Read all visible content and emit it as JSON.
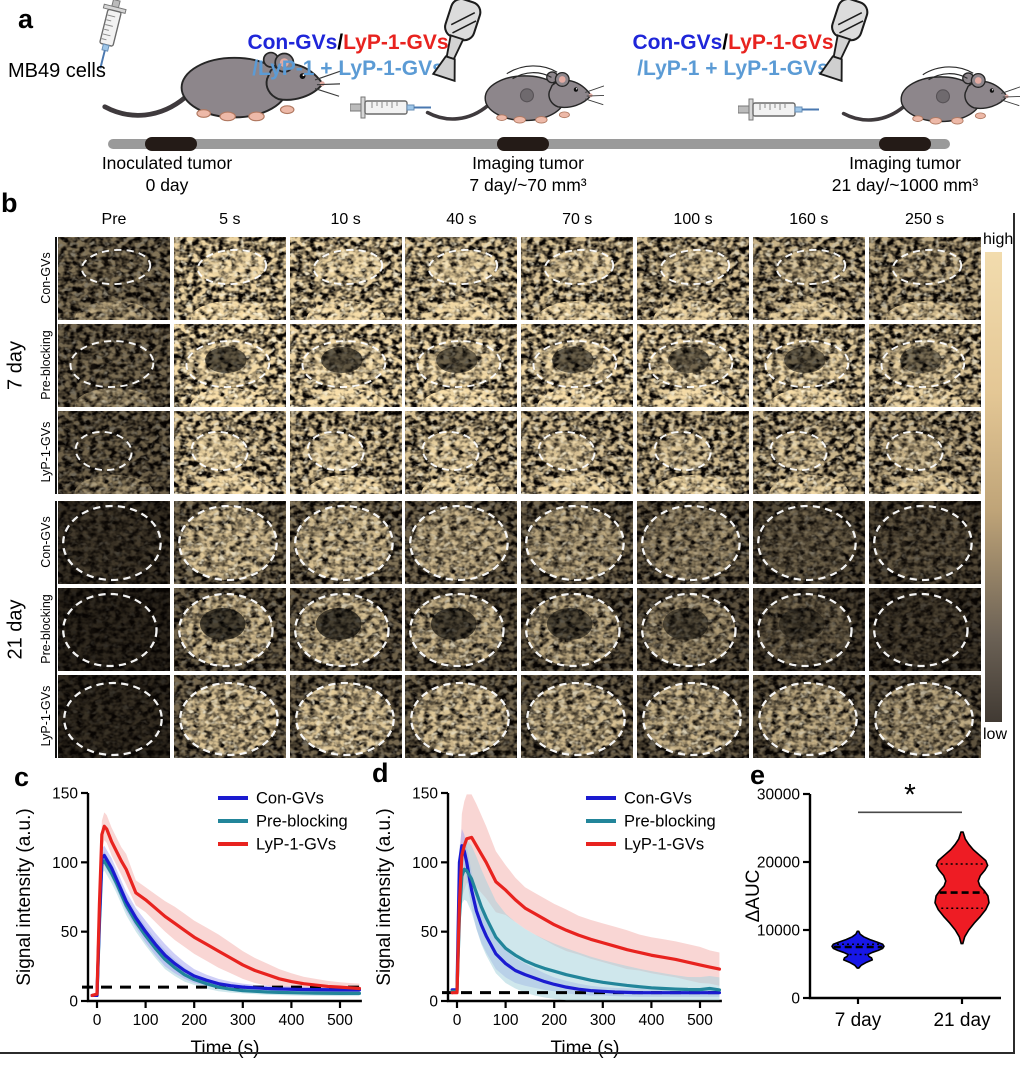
{
  "panels": {
    "a": "a",
    "b": "b",
    "c": "c",
    "d": "d",
    "e": "e"
  },
  "palette": {
    "blue": "#1f26d9",
    "red": "#e8231f",
    "lightblue": "#5b9bd5",
    "black": "#000000",
    "line_blue": "#1b1bd0",
    "line_teal": "#22859a",
    "line_red": "#e8231f",
    "band_blue": "#a8a8f0",
    "band_teal": "#a8d4dc",
    "band_red": "#f4b4b0",
    "violin_blue": "#1717e8",
    "violin_red": "#ee1c24",
    "colorbar_top": "#f2dcae",
    "colorbar_mid": "#bfa478",
    "colorbar_low": "#6b6155",
    "colorbar_bottom": "#413a33"
  },
  "panel_a": {
    "mb49": "MB49 cells",
    "injection_groups": [
      {
        "line1": [
          {
            "t": "Con-GVs",
            "c": "blue"
          },
          {
            "t": "/",
            "c": "black"
          },
          {
            "t": "LyP-1-GVs",
            "c": "red"
          }
        ],
        "line2": [
          {
            "t": "/LyP-1 + LyP-1-GVs",
            "c": "lightblue"
          }
        ]
      },
      {
        "line1": [
          {
            "t": "Con-GVs",
            "c": "blue"
          },
          {
            "t": "/",
            "c": "black"
          },
          {
            "t": "LyP-1-GVs",
            "c": "red"
          }
        ],
        "line2": [
          {
            "t": "/LyP-1 + LyP-1-GVs",
            "c": "lightblue"
          }
        ]
      }
    ],
    "timeline": [
      {
        "title": "Inoculated tumor",
        "subtitle": "0 day"
      },
      {
        "title": "Imaging tumor",
        "subtitle": "7 day/~70 mm³"
      },
      {
        "title": "Imaging tumor",
        "subtitle": "21 day/~1000 mm³"
      }
    ]
  },
  "panel_b": {
    "col_headers": [
      "Pre",
      "5 s",
      "10 s",
      "40 s",
      "70 s",
      "100 s",
      "160 s",
      "250 s"
    ],
    "groups": [
      {
        "label": "7 day",
        "rows": [
          "Con-GVs",
          "Pre-blocking",
          "LyP-1-GVs"
        ]
      },
      {
        "label": "21 day",
        "rows": [
          "Con-GVs",
          "Pre-blocking",
          "LyP-1-GVs"
        ]
      }
    ],
    "colorbar": {
      "top": "high",
      "bottom": "low"
    }
  },
  "chart_data": [
    {
      "id": "c",
      "type": "line",
      "xlabel": "Time (s)",
      "ylabel": "Signal intensity (a.u.)",
      "xticks": [
        0,
        100,
        200,
        300,
        400,
        500
      ],
      "yticks": [
        0,
        50,
        100,
        150
      ],
      "xlim": [
        -20,
        545
      ],
      "ylim": [
        0,
        150
      ],
      "baseline": 10,
      "legend_pos": "top-right",
      "t": [
        -10,
        0,
        5,
        10,
        15,
        20,
        30,
        40,
        50,
        60,
        80,
        100,
        120,
        140,
        160,
        180,
        200,
        225,
        250,
        275,
        300,
        325,
        350,
        375,
        400,
        425,
        450,
        475,
        500,
        520,
        540
      ],
      "series": [
        {
          "name": "Con-GVs",
          "color": "#1b1bd0",
          "band": "#a8a8f0",
          "mean": [
            4,
            4,
            60,
            103,
            105,
            102,
            96,
            88,
            80,
            72,
            60,
            50,
            41,
            33,
            27,
            22,
            18,
            15,
            12.5,
            11,
            10,
            9.5,
            9,
            8.7,
            8.5,
            8.3,
            8.2,
            8.1,
            8,
            8,
            8
          ],
          "err": [
            1,
            1,
            6,
            7,
            7,
            7,
            7,
            7,
            7,
            7,
            7,
            8,
            8,
            8,
            7,
            6,
            5,
            4,
            3.5,
            3,
            2.5,
            2,
            2,
            2,
            2,
            2,
            2,
            2,
            2,
            2,
            2
          ]
        },
        {
          "name": "Pre-blocking",
          "color": "#22859a",
          "band": "#a8d4dc",
          "mean": [
            4,
            4,
            55,
            99,
            101,
            98,
            92,
            85,
            77,
            69,
            57,
            47,
            38,
            30,
            24,
            19,
            15.5,
            12.5,
            10,
            8.5,
            7.5,
            7,
            6.5,
            6.2,
            6,
            5.8,
            5.7,
            5.6,
            5.5,
            5.5,
            5.5
          ],
          "err": [
            1,
            1,
            6,
            7,
            7,
            7,
            7,
            7,
            7,
            7,
            7,
            7,
            7,
            7,
            6,
            5,
            4,
            3.5,
            3,
            2.5,
            2,
            2,
            2,
            2,
            2,
            2,
            2,
            2,
            2,
            2,
            2
          ]
        },
        {
          "name": "LyP-1-GVs",
          "color": "#e8231f",
          "band": "#f4b4b0",
          "mean": [
            4,
            5,
            70,
            120,
            126,
            124,
            115,
            108,
            101,
            95,
            78,
            73,
            67,
            61,
            56,
            51,
            46,
            41,
            36,
            31,
            26,
            22,
            19,
            16,
            14,
            12.5,
            11.5,
            10.5,
            10,
            9.5,
            9
          ],
          "err": [
            1,
            1,
            8,
            10,
            10,
            10,
            10,
            10,
            10,
            11,
            9,
            9,
            10,
            11,
            12,
            12,
            12,
            12,
            12,
            11,
            10,
            9,
            8,
            7,
            6,
            5,
            4.5,
            4,
            3.5,
            3.5,
            3.5
          ]
        }
      ]
    },
    {
      "id": "d",
      "type": "line",
      "xlabel": "Time (s)",
      "ylabel": "Signal intensity (a.u.)",
      "xticks": [
        0,
        100,
        200,
        300,
        400,
        500
      ],
      "yticks": [
        0,
        50,
        100,
        150
      ],
      "xlim": [
        -20,
        545
      ],
      "ylim": [
        0,
        150
      ],
      "baseline": 6,
      "legend_pos": "top-right",
      "t": [
        -10,
        0,
        5,
        10,
        15,
        20,
        30,
        40,
        50,
        60,
        80,
        100,
        120,
        140,
        160,
        180,
        200,
        225,
        250,
        275,
        300,
        325,
        350,
        375,
        400,
        425,
        450,
        475,
        500,
        520,
        540
      ],
      "series": [
        {
          "name": "Con-GVs",
          "color": "#1b1bd0",
          "band": "#a8a8f0",
          "mean": [
            8,
            8,
            100,
            112,
            108,
            100,
            80,
            65,
            55,
            47,
            34,
            27,
            22,
            19,
            16.5,
            14,
            12,
            10,
            8.5,
            7.5,
            7,
            6.5,
            6.2,
            6,
            6,
            6,
            6,
            6,
            6,
            6,
            6
          ],
          "err": [
            1,
            1,
            10,
            12,
            12,
            12,
            13,
            13,
            13,
            12,
            11,
            10,
            9,
            8,
            7,
            6,
            5,
            4.5,
            4,
            3.5,
            3,
            3,
            3,
            3,
            3,
            3,
            3,
            3,
            3,
            3,
            3
          ]
        },
        {
          "name": "Pre-blocking",
          "color": "#22859a",
          "band": "#a8d4dc",
          "mean": [
            7,
            7,
            60,
            90,
            95,
            94,
            88,
            78,
            68,
            60,
            46,
            38,
            33,
            29,
            26,
            23.5,
            21.5,
            19,
            17,
            15,
            13.5,
            12.3,
            11.2,
            10.3,
            9.5,
            9,
            8.6,
            8.3,
            8.2,
            9,
            8
          ],
          "err": [
            1,
            1,
            15,
            20,
            22,
            22,
            24,
            26,
            27,
            27,
            26,
            25,
            24,
            23,
            22,
            21,
            20,
            19,
            18,
            17,
            16,
            15,
            14,
            13,
            12,
            11,
            10,
            9,
            9,
            9,
            9
          ]
        },
        {
          "name": "LyP-1-GVs",
          "color": "#e8231f",
          "band": "#f4b4b0",
          "mean": [
            6,
            6,
            70,
            105,
            112,
            117,
            118,
            112,
            106,
            100,
            86,
            80,
            73,
            67,
            63,
            59,
            55,
            51,
            47.5,
            44.5,
            42,
            39.5,
            37,
            35,
            33,
            31.5,
            30,
            28,
            26,
            24.5,
            23
          ],
          "err": [
            1,
            1,
            20,
            30,
            32,
            32,
            31,
            30,
            28,
            26,
            22,
            18,
            16,
            15,
            15,
            15,
            15,
            15,
            14,
            14,
            14,
            14,
            14,
            13,
            13,
            13,
            13,
            13,
            13,
            12,
            12
          ]
        }
      ]
    },
    {
      "id": "e",
      "type": "violin",
      "ylabel": "ΔAUC",
      "yticks": [
        0,
        10000,
        20000,
        30000
      ],
      "ylim": [
        0,
        30000
      ],
      "categories": [
        "7 day",
        "21 day"
      ],
      "significance": {
        "label": "*",
        "y": 27300
      },
      "violins": [
        {
          "name": "7 day",
          "color": "#1717e8",
          "median": 7500,
          "q1": 6400,
          "q3": 7900,
          "profile": [
            [
              4400,
              0.03
            ],
            [
              4800,
              0.12
            ],
            [
              5200,
              0.3
            ],
            [
              5600,
              0.55
            ],
            [
              5900,
              0.52
            ],
            [
              6100,
              0.42
            ],
            [
              6400,
              0.38
            ],
            [
              6700,
              0.55
            ],
            [
              7000,
              0.78
            ],
            [
              7300,
              0.95
            ],
            [
              7600,
              1.0
            ],
            [
              7900,
              0.95
            ],
            [
              8200,
              0.75
            ],
            [
              8600,
              0.45
            ],
            [
              9000,
              0.22
            ],
            [
              9400,
              0.08
            ],
            [
              9800,
              0.03
            ]
          ]
        },
        {
          "name": "21 day",
          "color": "#ee1c24",
          "median": 15500,
          "q1": 13200,
          "q3": 19700,
          "profile": [
            [
              8000,
              0.03
            ],
            [
              9000,
              0.1
            ],
            [
              10000,
              0.25
            ],
            [
              11000,
              0.45
            ],
            [
              12000,
              0.68
            ],
            [
              13000,
              0.88
            ],
            [
              14000,
              1.0
            ],
            [
              15000,
              0.96
            ],
            [
              15800,
              0.82
            ],
            [
              16500,
              0.66
            ],
            [
              17200,
              0.6
            ],
            [
              18000,
              0.68
            ],
            [
              18800,
              0.85
            ],
            [
              19500,
              0.95
            ],
            [
              20200,
              0.88
            ],
            [
              21000,
              0.65
            ],
            [
              21800,
              0.42
            ],
            [
              22600,
              0.25
            ],
            [
              23400,
              0.12
            ],
            [
              24400,
              0.04
            ]
          ]
        }
      ]
    }
  ]
}
